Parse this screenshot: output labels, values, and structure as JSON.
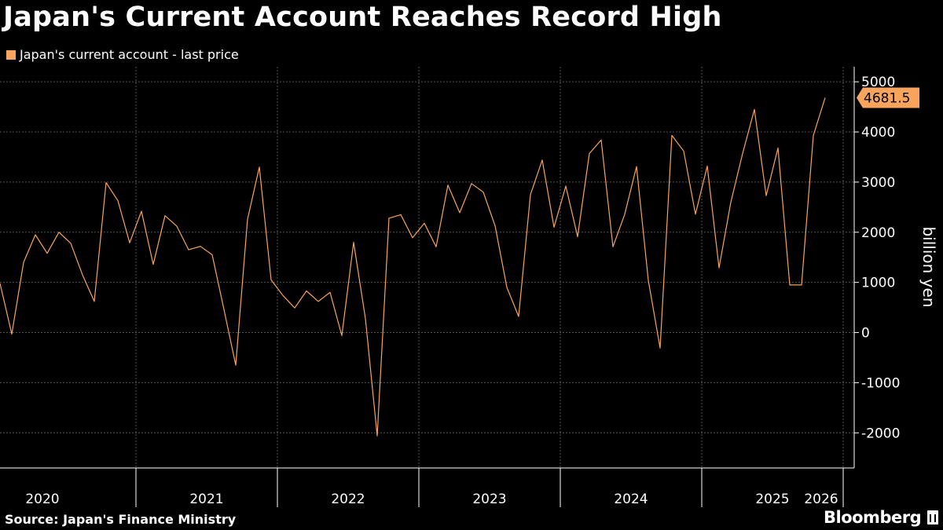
{
  "header": {
    "title": "Japan's Current Account Reaches Record High"
  },
  "footer": {
    "source": "Source: Japan's Finance Ministry",
    "brand": "Bloomberg"
  },
  "colors": {
    "background": "#000000",
    "line": "#f8a45c",
    "grid": "#555555",
    "text": "#ffffff"
  },
  "chart_data": {
    "type": "line",
    "ylabel": "billion yen",
    "ylim": [
      -2700,
      5300
    ],
    "yticks": [
      5000,
      4000,
      3000,
      2000,
      1000,
      0,
      -1000,
      -2000
    ],
    "ytick_labels": [
      "5000",
      "4000",
      "3000",
      "2000",
      "1000",
      "0",
      "-1000",
      "-2000"
    ],
    "year_labels": [
      "2020",
      "2021",
      "2022",
      "2023",
      "2024",
      "2025",
      "2026"
    ],
    "x_start": "2020-01",
    "grid": true,
    "legend_position": "top-left",
    "last_value_label": "4681.5",
    "series": [
      {
        "name": "Japan's current account - last price",
        "values": [
          980,
          -30,
          1400,
          1950,
          1580,
          2000,
          1780,
          1150,
          620,
          2990,
          2630,
          1790,
          2420,
          1360,
          2330,
          2120,
          1650,
          1720,
          1550,
          460,
          -650,
          2260,
          3300,
          1050,
          740,
          490,
          830,
          620,
          800,
          -60,
          1800,
          280,
          -2060,
          2280,
          2350,
          1890,
          2180,
          1710,
          2940,
          2390,
          2970,
          2800,
          2130,
          900,
          320,
          2750,
          3440,
          2100,
          2920,
          1910,
          3570,
          3840,
          1710,
          2360,
          3310,
          1040,
          -310,
          3930,
          3620,
          2360,
          3320,
          1290,
          2600,
          3570,
          4450,
          2730,
          3680,
          950,
          950,
          3930,
          4681.5
        ]
      }
    ]
  }
}
